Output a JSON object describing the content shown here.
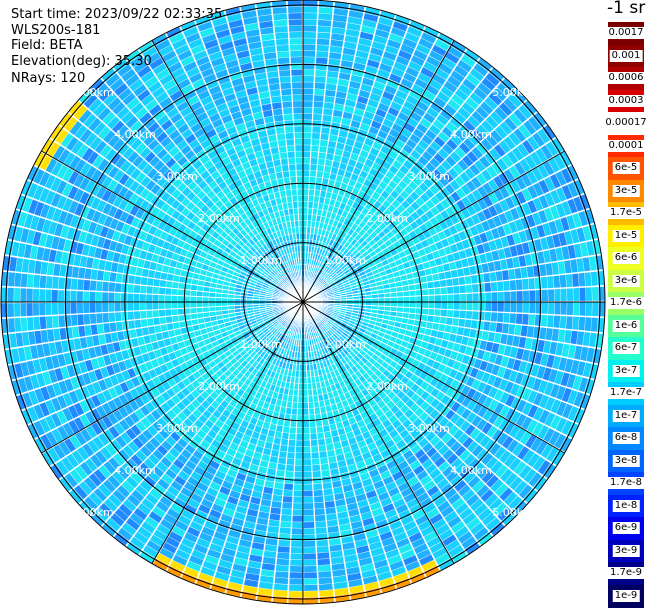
{
  "header": {
    "start_time": "Start time: 2023/09/22 02:33:35",
    "instrument": "WLS200s-181",
    "field": "Field: BETA",
    "elevation": "Elevation(deg): 35.30",
    "nrays": "NRays: 120"
  },
  "map": {
    "range_rings_km": [
      1,
      2,
      3,
      4,
      5
    ],
    "ring_labels": [
      "1.00km",
      "2.00km",
      "3.00km",
      "4.00km",
      "5.00km"
    ],
    "max_range_km": 5.1,
    "n_rays": 120,
    "spoke_angles_deg": [
      0,
      30,
      60,
      90,
      120,
      150,
      180,
      210,
      240,
      270,
      300,
      330
    ]
  },
  "colorbar": {
    "unit": "-1 sr",
    "levels": [
      {
        "label": "0.0017",
        "color": "#7a0000"
      },
      {
        "label": "0.001",
        "color": "#8f0000"
      },
      {
        "label": "0.0006",
        "color": "#b00000"
      },
      {
        "label": "0.0003",
        "color": "#d80000"
      },
      {
        "label": "0.00017",
        "color": "#ffffff"
      },
      {
        "label": "0.0001",
        "color": "#ff2a00"
      },
      {
        "label": "6e-5",
        "color": "#ff5500"
      },
      {
        "label": "3e-5",
        "color": "#ff8800"
      },
      {
        "label": "1.7e-5",
        "color": "#ffbb00"
      },
      {
        "label": "1e-5",
        "color": "#ffee00"
      },
      {
        "label": "6e-6",
        "color": "#eeff22"
      },
      {
        "label": "3e-6",
        "color": "#ccff44"
      },
      {
        "label": "1.7e-6",
        "color": "#99ff66"
      },
      {
        "label": "1e-6",
        "color": "#55ff99"
      },
      {
        "label": "6e-7",
        "color": "#22ffcc"
      },
      {
        "label": "3e-7",
        "color": "#00f0ee"
      },
      {
        "label": "1.7e-7",
        "color": "#00ccff"
      },
      {
        "label": "1e-7",
        "color": "#00aaff"
      },
      {
        "label": "6e-8",
        "color": "#0088ff"
      },
      {
        "label": "3e-8",
        "color": "#0066ff"
      },
      {
        "label": "1.7e-8",
        "color": "#0044ff"
      },
      {
        "label": "1e-8",
        "color": "#0022ff"
      },
      {
        "label": "6e-9",
        "color": "#0000ee"
      },
      {
        "label": "3e-9",
        "color": "#0000bb"
      },
      {
        "label": "1.7e-9",
        "color": "#000088"
      },
      {
        "label": "1e-9",
        "color": "#000060"
      }
    ]
  }
}
